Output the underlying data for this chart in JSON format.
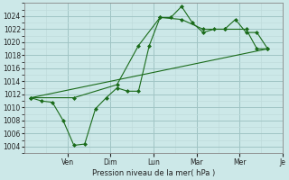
{
  "xlabel": "Pression niveau de la mer( hPa )",
  "bg_color": "#cce8e8",
  "grid_color_major": "#b0cccc",
  "grid_color_minor": "#d0e8e8",
  "line_color": "#1a6b1a",
  "ylim": [
    1003,
    1026
  ],
  "yticks": [
    1004,
    1006,
    1008,
    1010,
    1012,
    1014,
    1016,
    1018,
    1020,
    1022,
    1024
  ],
  "xlim": [
    0,
    12
  ],
  "xtick_positions": [
    2,
    4,
    6,
    8,
    10,
    12
  ],
  "xtick_labels": [
    "Ven",
    "Dim",
    "Lun",
    "Mar",
    "Mer",
    "Je"
  ],
  "series1_x": [
    0.3,
    0.8,
    1.3,
    1.8,
    2.3,
    2.8,
    3.3,
    3.8,
    4.3,
    4.8,
    5.3,
    5.8,
    6.3,
    6.8,
    7.3,
    7.8,
    8.3,
    8.8,
    9.3,
    9.8,
    10.3,
    10.8,
    11.3
  ],
  "series1_y": [
    1011.5,
    1011.0,
    1010.8,
    1008.0,
    1004.2,
    1004.4,
    1009.8,
    1011.5,
    1013.0,
    1012.5,
    1012.5,
    1019.5,
    1023.8,
    1023.8,
    1025.5,
    1023.0,
    1021.5,
    1022.0,
    1022.0,
    1023.5,
    1021.5,
    1021.5,
    1019.0
  ],
  "series2_x": [
    0.3,
    2.3,
    4.3,
    5.3,
    6.3,
    7.3,
    8.3,
    9.3,
    10.3,
    10.8,
    11.3
  ],
  "series2_y": [
    1011.5,
    1011.5,
    1013.5,
    1019.5,
    1023.8,
    1023.5,
    1022.0,
    1022.0,
    1022.0,
    1019.0,
    1019.0
  ],
  "series3_x": [
    0.3,
    11.3
  ],
  "series3_y": [
    1011.5,
    1019.0
  ]
}
